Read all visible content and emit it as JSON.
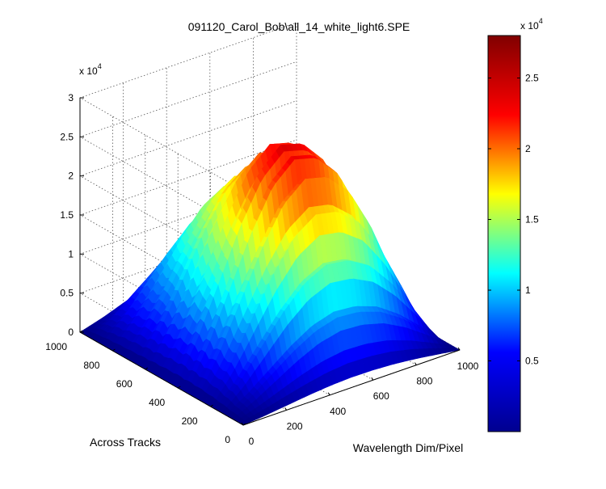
{
  "chart_data": {
    "type": "surface",
    "title": "091120_Carol_Bob\\all_14_white_light6.SPE",
    "xlabel": "Wavelength Dim/Pixel",
    "ylabel": "Across Tracks",
    "zlabel": "",
    "x_ticks": [
      "0",
      "200",
      "400",
      "600",
      "800",
      "1000"
    ],
    "y_ticks": [
      "0",
      "200",
      "400",
      "600",
      "800",
      "1000"
    ],
    "z_ticks": [
      "0",
      "0.5",
      "1",
      "1.5",
      "2",
      "2.5",
      "3"
    ],
    "z_multiplier": "x 10",
    "z_exponent": "4",
    "xlim": [
      0,
      1000
    ],
    "ylim": [
      0,
      1000
    ],
    "zlim": [
      0,
      30000
    ],
    "grid": true,
    "colormap": "jet",
    "peak_value": 26500,
    "wavelength_profile": {
      "x": [
        0,
        100,
        200,
        300,
        400,
        500,
        600,
        700,
        800,
        900,
        1000
      ],
      "relative_intensity": [
        0.0,
        0.2,
        0.45,
        0.7,
        0.9,
        1.0,
        0.97,
        0.85,
        0.62,
        0.32,
        0.0
      ]
    },
    "track_envelope": {
      "y": [
        0,
        100,
        200,
        300,
        400,
        500,
        600,
        700,
        800,
        900,
        1000
      ],
      "relative_intensity": [
        0.05,
        0.35,
        0.7,
        0.92,
        1.0,
        0.95,
        0.85,
        0.72,
        0.6,
        0.42,
        0.15
      ]
    },
    "track_banding_count": 14,
    "colorbar": {
      "ticks": [
        "0.5",
        "1",
        "1.5",
        "2",
        "2.5"
      ],
      "tick_values": [
        5000,
        10000,
        15000,
        20000,
        25000
      ],
      "range": [
        0,
        28000
      ],
      "multiplier": "x 10",
      "exponent": "4"
    }
  },
  "colors": {
    "jet_stops": [
      "#00008f",
      "#0000ff",
      "#00ffff",
      "#ffff00",
      "#ff0000",
      "#800000"
    ]
  }
}
